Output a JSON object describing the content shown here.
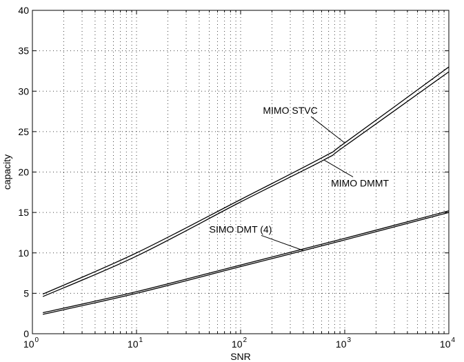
{
  "chart_data": {
    "type": "line",
    "title": "",
    "xlabel": "SNR",
    "ylabel": "capacity",
    "xscale": "log",
    "xlim": [
      1,
      10000
    ],
    "ylim": [
      0,
      40
    ],
    "grid": true,
    "x_tick_labels": [
      {
        "base": "10",
        "exp": "0"
      },
      {
        "base": "10",
        "exp": "1"
      },
      {
        "base": "10",
        "exp": "2"
      },
      {
        "base": "10",
        "exp": "3"
      },
      {
        "base": "10",
        "exp": "4"
      }
    ],
    "y_tick_labels": [
      "0",
      "5",
      "10",
      "15",
      "20",
      "25",
      "30",
      "35",
      "40"
    ],
    "series": [
      {
        "name": "MIMO STVC",
        "x": [
          1.26,
          10,
          100,
          631,
          1000,
          10000
        ],
        "y": [
          4.9,
          10.0,
          16.6,
          21.9,
          23.6,
          33.0
        ]
      },
      {
        "name": "MIMO DMMT",
        "x": [
          1.26,
          10,
          100,
          631,
          1000,
          10000
        ],
        "y": [
          4.6,
          9.6,
          16.3,
          21.5,
          23.2,
          32.4
        ]
      },
      {
        "name": "SIMO DMT (4)",
        "x": [
          1.26,
          10,
          100,
          1000,
          10000
        ],
        "y": [
          2.6,
          5.2,
          8.5,
          11.8,
          15.2
        ]
      },
      {
        "name": "",
        "x": [
          1.26,
          10,
          100,
          1000,
          10000
        ],
        "y": [
          2.4,
          5.0,
          8.3,
          11.6,
          15.0
        ]
      }
    ],
    "annotations": [
      {
        "text": "MIMO STVC",
        "x": 300,
        "y": 27.2,
        "arrow_x": 1000,
        "arrow_y": 23.6
      },
      {
        "text": "MIMO DMMT",
        "x": 1400,
        "y": 18.2,
        "arrow_x": 631,
        "arrow_y": 21.5
      },
      {
        "text": "SIMO DMT (4)",
        "x": 100,
        "y": 12.5,
        "arrow_x": 400,
        "arrow_y": 10.3
      }
    ]
  }
}
